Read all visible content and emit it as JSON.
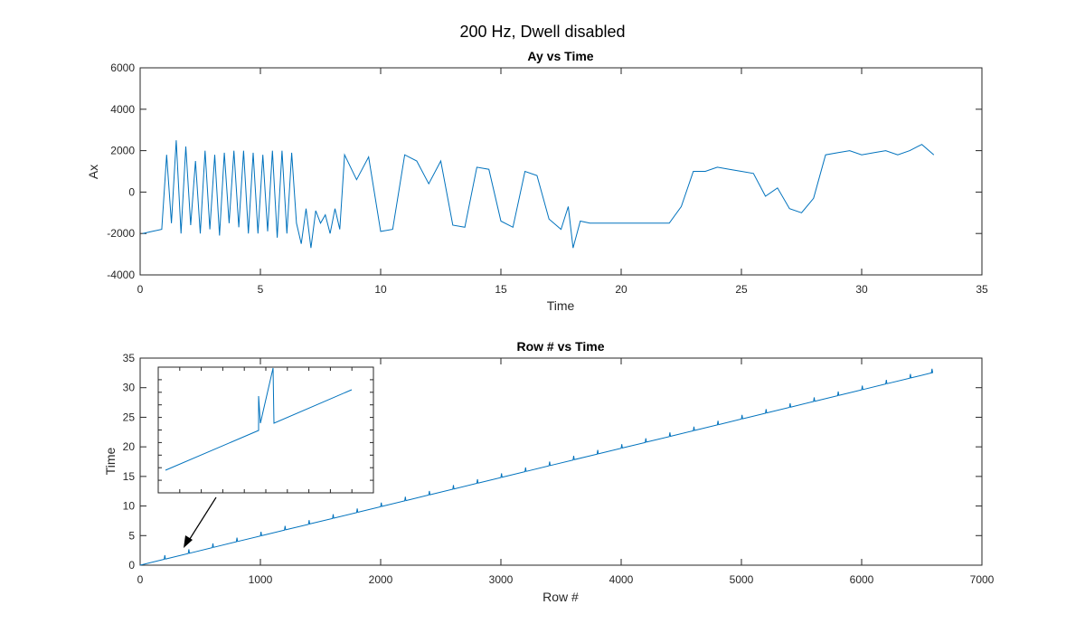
{
  "figure": {
    "title": "200 Hz, Dwell disabled"
  },
  "chart_data": [
    {
      "type": "line",
      "title": "Ay vs Time",
      "xlabel": "Time",
      "ylabel": "Ax",
      "xlim": [
        0,
        35
      ],
      "ylim": [
        -4000,
        6000
      ],
      "xticks": [
        0,
        5,
        10,
        15,
        20,
        25,
        30,
        35
      ],
      "yticks": [
        -4000,
        -2000,
        0,
        2000,
        4000,
        6000
      ],
      "grid": false,
      "line_color": "#0072BD",
      "series": [
        {
          "x": [
            0.1,
            0.5,
            0.9,
            1.1,
            1.3,
            1.5,
            1.7,
            1.9,
            2.1,
            2.3,
            2.5,
            2.7,
            2.9,
            3.1,
            3.3,
            3.5,
            3.7,
            3.9,
            4.1,
            4.3,
            4.5,
            4.7,
            4.9,
            5.1,
            5.3,
            5.5,
            5.7,
            5.9,
            6.1,
            6.3,
            6.5,
            6.7,
            6.9,
            7.1,
            7.3,
            7.5,
            7.7,
            7.9,
            8.1,
            8.3,
            8.5,
            9.0,
            9.5,
            10.0,
            10.5,
            11.0,
            11.5,
            12.0,
            12.5,
            13.0,
            13.5,
            14.0,
            14.5,
            15.0,
            15.5,
            16.0,
            16.5,
            17.0,
            17.5,
            17.8,
            18.0,
            18.3,
            18.7,
            19.0,
            19.5,
            20.0,
            20.5,
            21.0,
            21.5,
            22.0,
            22.5,
            23.0,
            23.5,
            24.0,
            24.5,
            25.0,
            25.5,
            26.0,
            26.5,
            27.0,
            27.5,
            28.0,
            28.5,
            29.0,
            29.5,
            30.0,
            30.5,
            31.0,
            31.5,
            32.0,
            32.5,
            33.0
          ],
          "y": [
            -2000,
            -1900,
            -1800,
            1800,
            -1500,
            2500,
            -2000,
            2200,
            -1600,
            1500,
            -2000,
            2000,
            -1800,
            1800,
            -2100,
            1900,
            -1500,
            2000,
            -1700,
            2000,
            -2000,
            1900,
            -2000,
            1800,
            -1900,
            2000,
            -2200,
            2000,
            -2000,
            1900,
            -1500,
            -2500,
            -800,
            -2700,
            -900,
            -1500,
            -1100,
            -2000,
            -800,
            -1800,
            1800,
            600,
            1700,
            -1900,
            -1800,
            1800,
            1500,
            400,
            1500,
            -1600,
            -1700,
            1200,
            1100,
            -1400,
            -1700,
            1000,
            800,
            -1300,
            -1800,
            -700,
            -2700,
            -1400,
            -1500,
            -1500,
            -1500,
            -1500,
            -1500,
            -1500,
            -1500,
            -1500,
            -700,
            1000,
            1000,
            1200,
            1100,
            1000,
            900,
            -200,
            200,
            -800,
            -1000,
            -300,
            1800,
            1900,
            2000,
            1800,
            1900,
            2000,
            1800,
            2000,
            2300,
            1800
          ]
        }
      ]
    },
    {
      "type": "line",
      "title": "Row # vs Time",
      "xlabel": "Row #",
      "ylabel": "Time",
      "xlim": [
        0,
        7000
      ],
      "ylim": [
        0,
        35
      ],
      "xticks": [
        0,
        1000,
        2000,
        3000,
        4000,
        5000,
        6000,
        7000
      ],
      "yticks": [
        0,
        5,
        10,
        15,
        20,
        25,
        30,
        35
      ],
      "grid": false,
      "line_color": "#0072BD",
      "series": [
        {
          "x": [
            0,
            6580
          ],
          "y": [
            0,
            32.5
          ]
        }
      ],
      "spikes": {
        "x": [
          200,
          400,
          600,
          800,
          1000,
          1200,
          1400,
          1600,
          1800,
          2000,
          2200,
          2400,
          2600,
          2800,
          3000,
          3200,
          3400,
          3600,
          3800,
          4000,
          4200,
          4400,
          4600,
          4800,
          5000,
          5200,
          5400,
          5600,
          5800,
          6000,
          6200,
          6400,
          6580
        ],
        "height": 0.7
      }
    }
  ]
}
